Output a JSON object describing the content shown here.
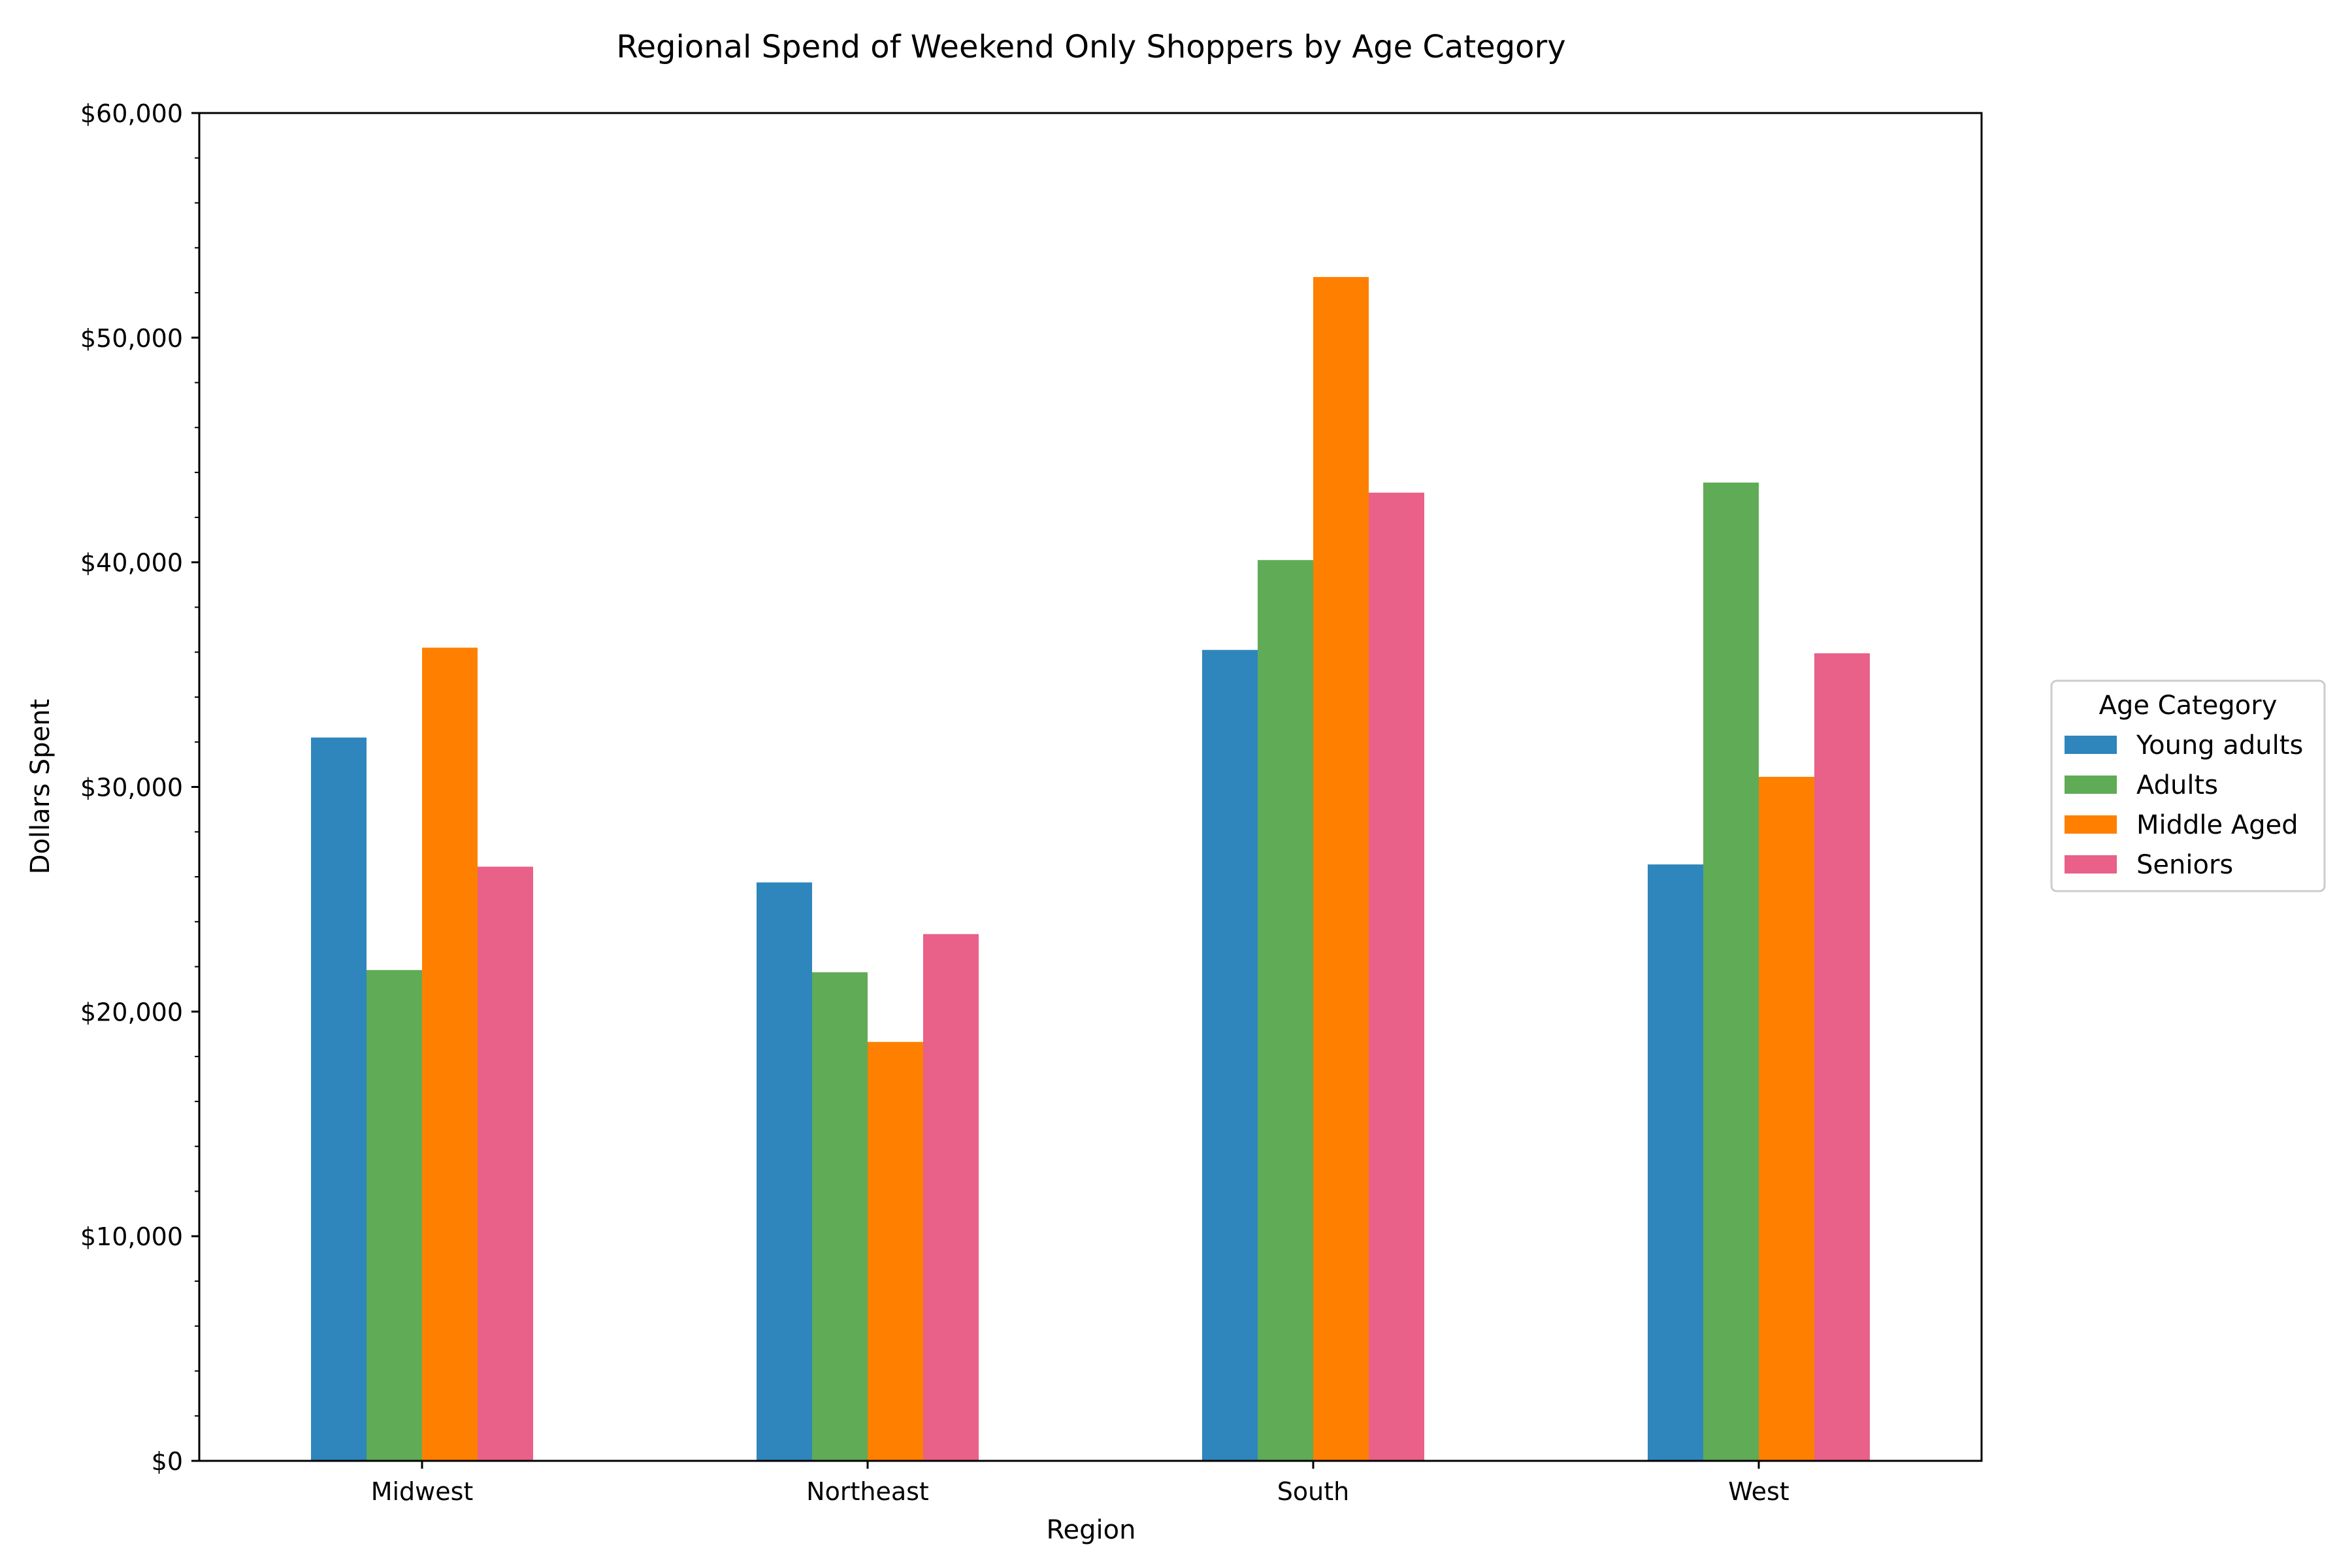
{
  "chart_data": {
    "type": "bar",
    "title": "Regional Spend of Weekend Only Shoppers by Age Category",
    "xlabel": "Region",
    "ylabel": "Dollars Spent",
    "categories": [
      "Midwest",
      "Northeast",
      "South",
      "West"
    ],
    "ylim": [
      0,
      60000
    ],
    "yticks": [
      0,
      10000,
      20000,
      30000,
      40000,
      50000,
      60000
    ],
    "ytick_labels": [
      "$0",
      "$10,000",
      "$20,000",
      "$30,000",
      "$40,000",
      "$50,000",
      "$60,000"
    ],
    "grid": false,
    "legend": {
      "title": "Age Category",
      "placement": "outside-right"
    },
    "series": [
      {
        "name": "Young adults",
        "color": "#2e86bc",
        "values": [
          32200,
          25750,
          36100,
          26550
        ]
      },
      {
        "name": "Adults",
        "color": "#60ab56",
        "values": [
          21850,
          21750,
          40100,
          43550
        ]
      },
      {
        "name": "Middle Aged",
        "color": "#ff8000",
        "values": [
          36200,
          18650,
          52700,
          30450
        ]
      },
      {
        "name": "Seniors",
        "color": "#e96088",
        "values": [
          26450,
          23450,
          43100,
          35950
        ]
      }
    ]
  }
}
